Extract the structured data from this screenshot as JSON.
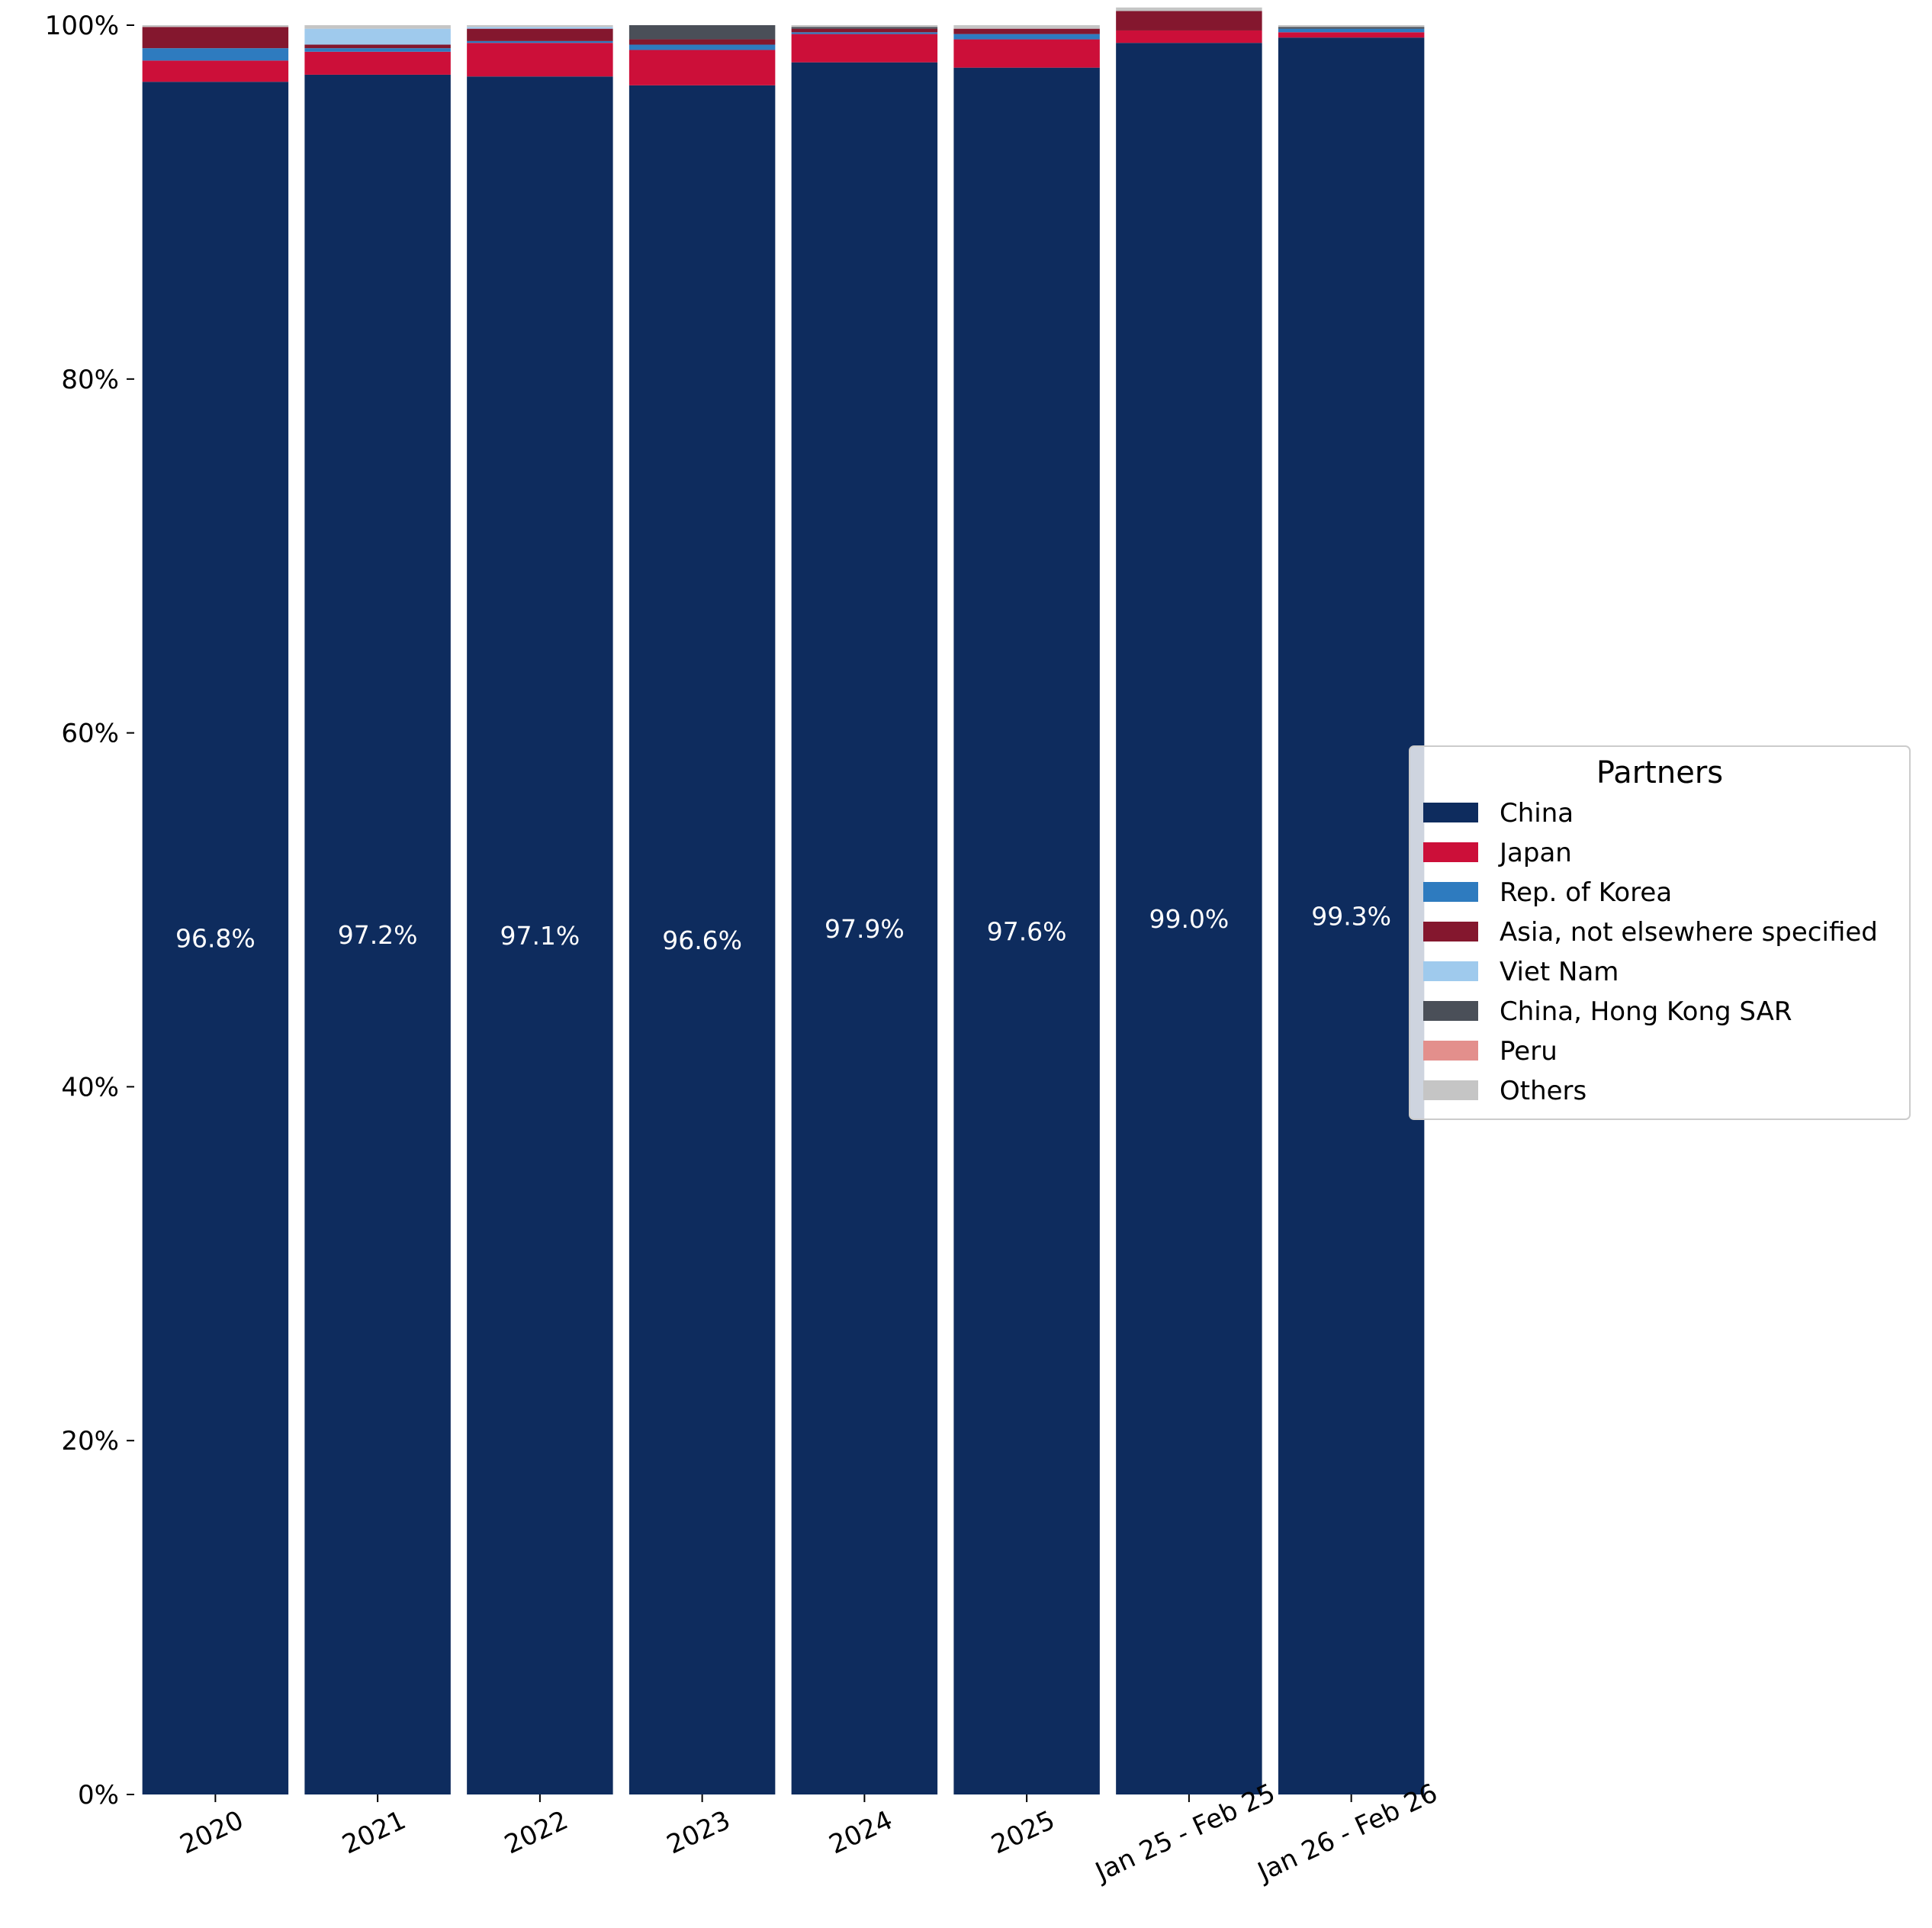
{
  "chart_data": {
    "type": "bar",
    "stacked": true,
    "normalized": true,
    "categories": [
      "2020",
      "2021",
      "2022",
      "2023",
      "2024",
      "2025",
      "Jan 25 - Feb 25",
      "Jan 26 - Feb 26"
    ],
    "series": [
      {
        "name": "China",
        "color": "#0e2c5e",
        "values": [
          96.8,
          97.2,
          97.1,
          96.6,
          97.9,
          97.6,
          99.0,
          99.3
        ]
      },
      {
        "name": "Japan",
        "color": "#cc0f39",
        "values": [
          1.2,
          1.3,
          1.9,
          2.0,
          1.6,
          1.6,
          0.7,
          0.3
        ]
      },
      {
        "name": "Rep. of Korea",
        "color": "#2e7bbf",
        "values": [
          0.7,
          0.2,
          0.1,
          0.3,
          0.1,
          0.3,
          0.0,
          0.2
        ]
      },
      {
        "name": "Asia, not elsewhere specified",
        "color": "#84172e",
        "values": [
          1.2,
          0.2,
          0.7,
          0.3,
          0.2,
          0.3,
          1.1,
          0.0
        ]
      },
      {
        "name": "Viet Nam",
        "color": "#9fcaed",
        "values": [
          0.0,
          0.9,
          0.1,
          0.0,
          0.0,
          0.0,
          0.0,
          0.0
        ]
      },
      {
        "name": "China, Hong Kong SAR",
        "color": "#4a4f58",
        "values": [
          0.0,
          0.0,
          0.0,
          0.8,
          0.1,
          0.0,
          0.0,
          0.1
        ]
      },
      {
        "name": "Peru",
        "color": "#e38f8c",
        "values": [
          0.0,
          0.0,
          0.0,
          0.0,
          0.0,
          0.0,
          0.0,
          0.0
        ]
      },
      {
        "name": "Others",
        "color": "#c5c5c5",
        "values": [
          0.1,
          0.2,
          0.1,
          0.0,
          0.1,
          0.2,
          0.2,
          0.1
        ]
      }
    ],
    "data_labels": [
      "96.8%",
      "97.2%",
      "97.1%",
      "96.6%",
      "97.9%",
      "97.6%",
      "99.0%",
      "99.3%"
    ],
    "y_ticks": [
      "0%",
      "20%",
      "40%",
      "60%",
      "80%",
      "100%"
    ],
    "y_tick_values": [
      0,
      20,
      40,
      60,
      80,
      100
    ],
    "ylim": [
      0,
      100
    ],
    "title": "",
    "xlabel": "",
    "ylabel": "",
    "grid": false,
    "legend": {
      "title": "Partners",
      "placement": "center-right"
    }
  }
}
